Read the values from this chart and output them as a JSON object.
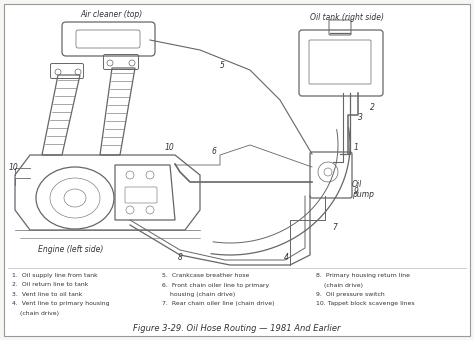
{
  "title": "Figure 3-29. Oil Hose Routing — 1981 And Earlier",
  "fig_bg": "#f8f6f2",
  "border_color": "#999999",
  "diagram_color": "#666666",
  "text_color": "#333333",
  "labels": {
    "air_cleaner": "Air cleaner (top)",
    "oil_tank": "Oil tank (right side)",
    "engine": "Engine (left side)",
    "oil_pump": "Oil\npump"
  },
  "legend_col1": [
    "1.  Oil supply line from tank",
    "2.  Oil return line to tank",
    "3.  Vent line to oil tank",
    "4.  Vent line to primary housing",
    "    (chain drive)"
  ],
  "legend_col2": [
    "5.  Crankcase breather hose",
    "6.  Front chain oiler line to primary",
    "    housing (chain drive)",
    "7.  Rear chain oiler line (chain drive)",
    ""
  ],
  "legend_col3": [
    "8.  Primary housing return line",
    "    (chain drive)",
    "9.  Oil pressure switch",
    "10. Tappet block scavenge lines",
    ""
  ]
}
